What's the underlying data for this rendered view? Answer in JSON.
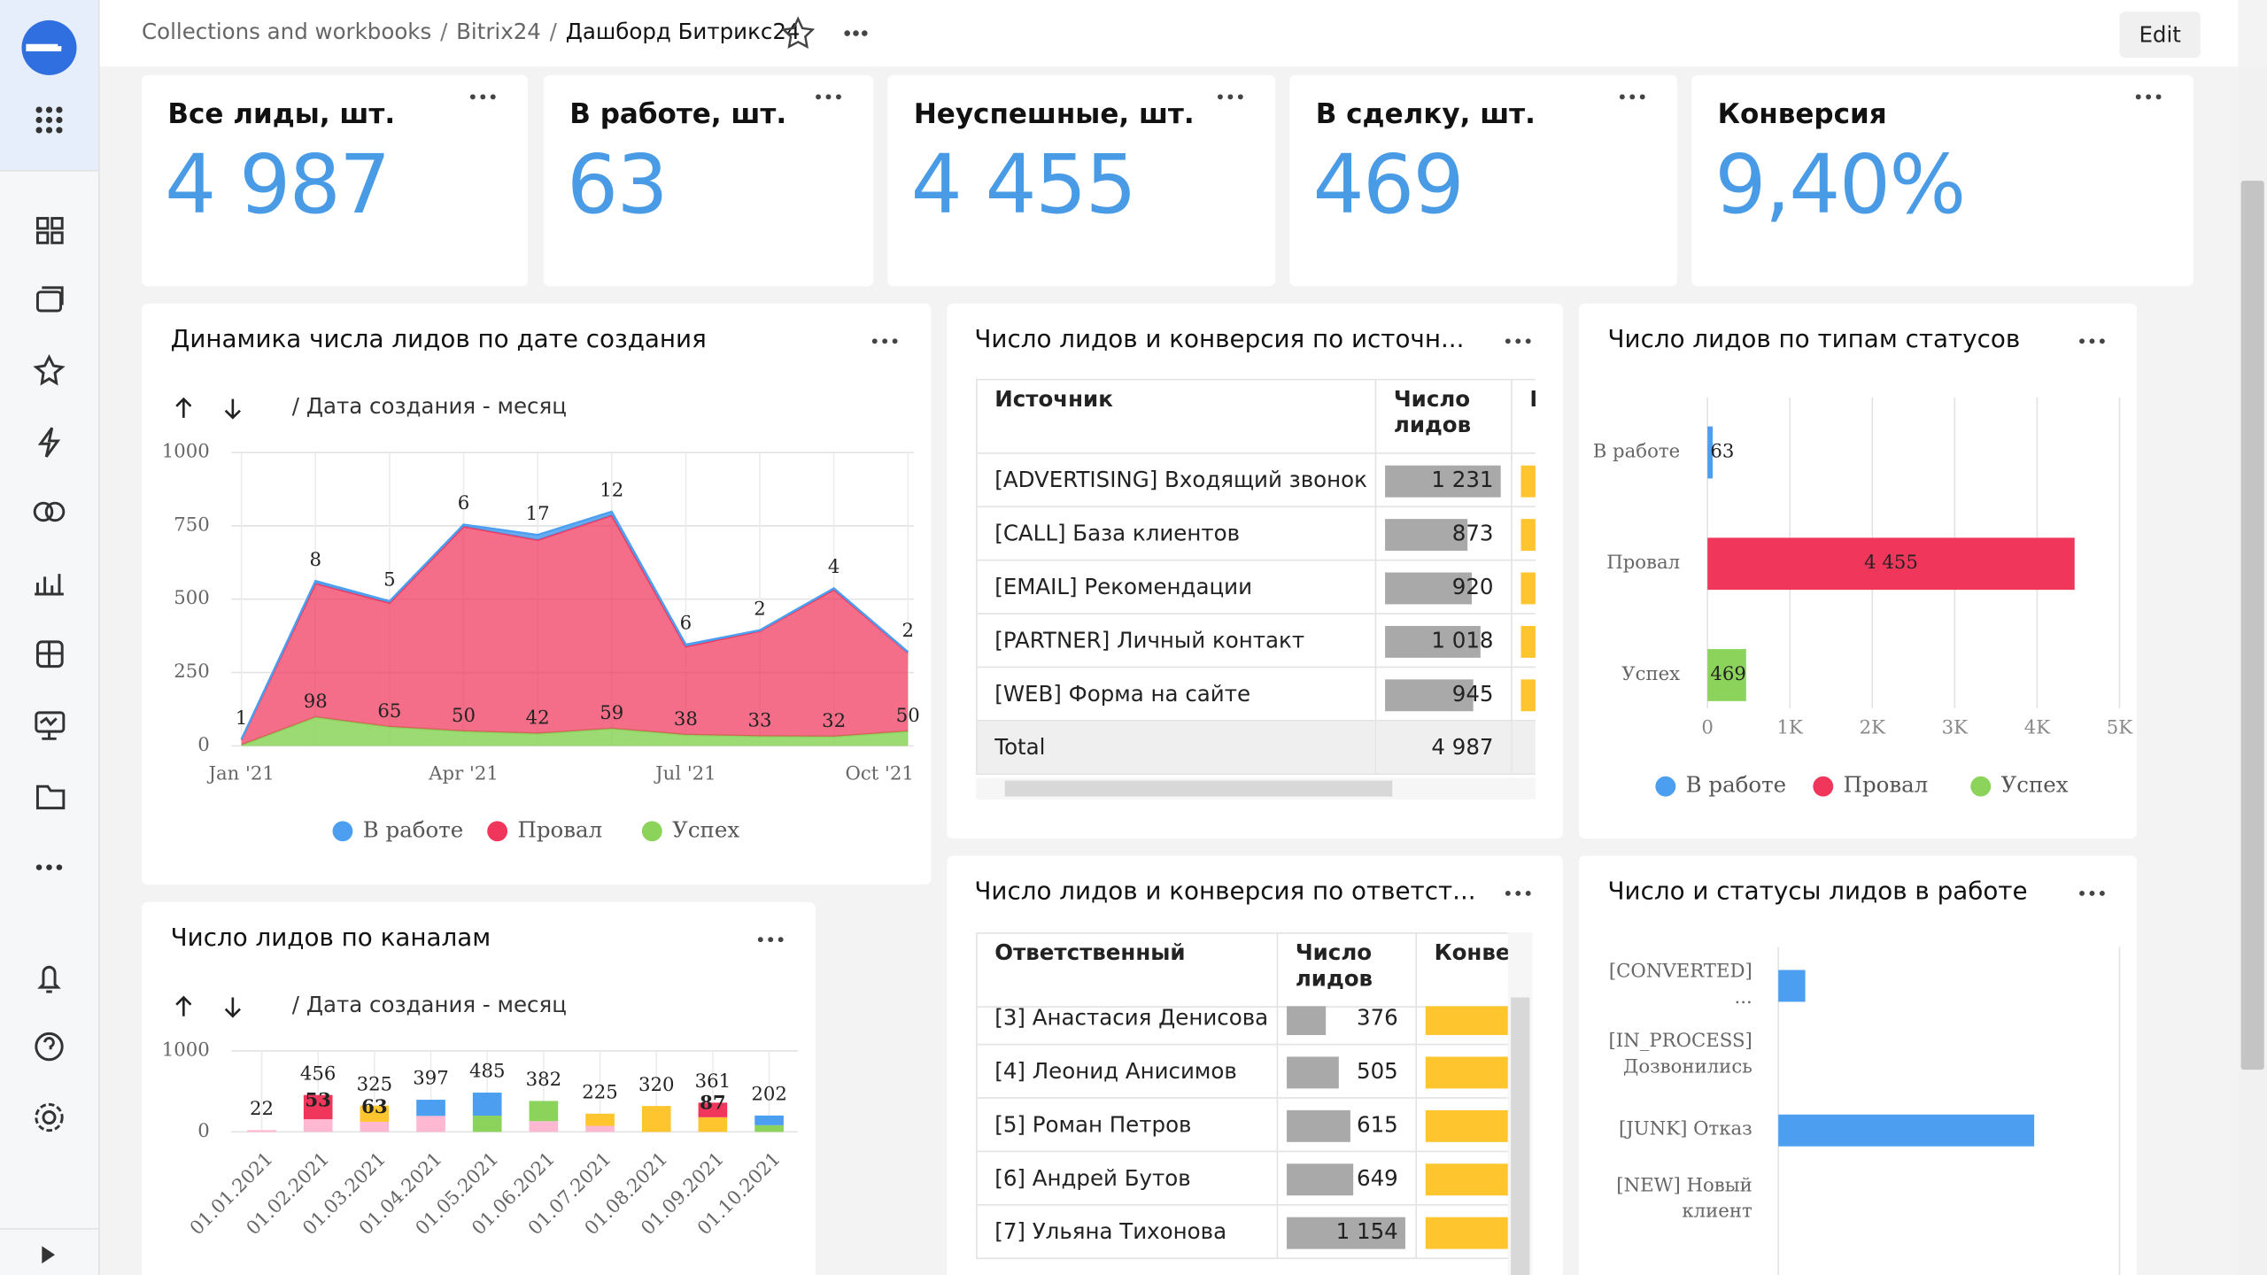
{
  "header": {
    "breadcrumbs": [
      "Collections and workbooks",
      "Bitrix24",
      "Дашборд Битрикс24"
    ],
    "edit": "Edit"
  },
  "kpis": [
    {
      "title": "Все лиды, шт.",
      "value": "4 987"
    },
    {
      "title": "В работе, шт.",
      "value": "63"
    },
    {
      "title": "Неуспешные, шт.",
      "value": "4 455"
    },
    {
      "title": "В сделку, шт.",
      "value": "469"
    },
    {
      "title": "Конверсия",
      "value": "9,40%"
    }
  ],
  "chart_data": [
    {
      "type": "area",
      "title": "Динамика числа лидов по дате создания",
      "drill_label": "/ Дата создания - месяц",
      "x": [
        "Jan '21",
        null,
        null,
        "Apr '21",
        null,
        null,
        "Jul '21",
        null,
        null,
        "Oct '21"
      ],
      "series": [
        {
          "name": "В работе",
          "color": "#4c9ff0",
          "values": [
            1,
            8,
            5,
            6,
            17,
            12,
            6,
            2,
            4,
            2
          ]
        },
        {
          "name": "Провал",
          "color": "#f0365b",
          "values": [
            18,
            456,
            423,
            698,
            660,
            727,
            301,
            359,
            501,
            268
          ]
        },
        {
          "name": "Успех",
          "color": "#8bd35a",
          "values": [
            3,
            98,
            65,
            50,
            42,
            59,
            38,
            33,
            32,
            50
          ],
          "value_labels": [
            null,
            "98",
            "65",
            "50",
            "42",
            "59",
            "38",
            "33",
            "32",
            "50"
          ]
        }
      ],
      "ylim": [
        0,
        1000
      ],
      "yticks": [
        0,
        250,
        500,
        750,
        1000
      ],
      "grid": true
    },
    {
      "type": "stacked_bar",
      "title": "Число лидов по каналам",
      "drill_label": "/ Дата создания - месяц",
      "categories": [
        "01.01.2021",
        "01.02.2021",
        "01.03.2021",
        "01.04.2021",
        "01.05.2021",
        "01.06.2021",
        "01.07.2021",
        "01.08.2021",
        "01.09.2021",
        "01.10.2021"
      ],
      "series": [
        {
          "color": "#ffb8d2",
          "values": [
            22,
            156,
            125,
            197,
            0,
            132,
            75,
            0,
            0,
            0
          ]
        },
        {
          "color": "#8bd35a",
          "values": [
            0,
            0,
            0,
            0,
            200,
            250,
            0,
            0,
            0,
            82
          ]
        },
        {
          "color": "#ffc52e",
          "values": [
            0,
            0,
            200,
            0,
            0,
            0,
            150,
            320,
            181,
            0
          ]
        },
        {
          "color": "#f0365b",
          "values": [
            0,
            300,
            0,
            0,
            0,
            0,
            0,
            0,
            180,
            0
          ]
        },
        {
          "color": "#4c9ff0",
          "values": [
            0,
            0,
            0,
            200,
            285,
            0,
            0,
            0,
            0,
            120
          ]
        }
      ],
      "totals": [
        22,
        456,
        325,
        397,
        485,
        382,
        225,
        320,
        361,
        202
      ],
      "inner_labels": [
        null,
        53,
        63,
        null,
        null,
        null,
        null,
        null,
        87,
        null
      ],
      "ylim": [
        0,
        1000
      ],
      "yticks": [
        0,
        1000
      ],
      "grid": true
    },
    {
      "type": "hbar",
      "title": "Число лидов по типам статусов",
      "categories": [
        "В работе",
        "Провал",
        "Успех"
      ],
      "values": [
        63,
        4455,
        469
      ],
      "value_labels": [
        "63",
        "4 455",
        "469"
      ],
      "colors": [
        "#4c9ff0",
        "#f0365b",
        "#8bd35a"
      ],
      "xlim": [
        0,
        5000
      ],
      "xticks": [
        0,
        {
          "value": 1000,
          "label": "1K"
        },
        {
          "value": 2000,
          "label": "2K"
        },
        {
          "value": 3000,
          "label": "3K"
        },
        {
          "value": 4000,
          "label": "4K"
        },
        {
          "value": 5000,
          "label": "5K"
        }
      ],
      "grid": true,
      "legend": true
    },
    {
      "type": "hbar",
      "title": "Число и статусы лидов в работе",
      "categories": [
        "[CONVERTED] ...",
        "[IN_PROCESS] Дозвонились",
        "[JUNK] Отказ",
        "[NEW] Новый клиент"
      ],
      "values": [
        6,
        0,
        57,
        0
      ],
      "color": "#4c9ff0",
      "xlim": [
        0,
        76
      ]
    }
  ],
  "tables": [
    {
      "title": "Число лидов и конверсия по источн...",
      "columns": [
        "Источник",
        "Число лидов",
        "Конверсия"
      ],
      "rows": [
        {
          "label": "[ADVERTISING] Входящий звонок",
          "value": 1231,
          "value_label": "1 231"
        },
        {
          "label": "[CALL] База клиентов",
          "value": 873,
          "value_label": "873"
        },
        {
          "label": "[EMAIL] Рекомендации",
          "value": 920,
          "value_label": "920"
        },
        {
          "label": "[PARTNER] Личный контакт",
          "value": 1018,
          "value_label": "1 018"
        },
        {
          "label": "[WEB] Форма на сайте",
          "value": 945,
          "value_label": "945"
        }
      ],
      "total": {
        "label": "Total",
        "value_label": "4 987"
      }
    },
    {
      "title": "Число лидов и конверсия по ответст...",
      "columns": [
        "Ответственный",
        "Число лидов",
        "Конверсия"
      ],
      "rows": [
        {
          "label": "[3] Анастасия Денисова",
          "value": 376,
          "value_label": "376"
        },
        {
          "label": "[4] Леонид Анисимов",
          "value": 505,
          "value_label": "505"
        },
        {
          "label": "[5] Роман Петров",
          "value": 615,
          "value_label": "615"
        },
        {
          "label": "[6] Андрей Бутов",
          "value": 649,
          "value_label": "649"
        },
        {
          "label": "[7] Ульяна Тихонова",
          "value": 1154,
          "value_label": "1 154"
        }
      ]
    }
  ]
}
